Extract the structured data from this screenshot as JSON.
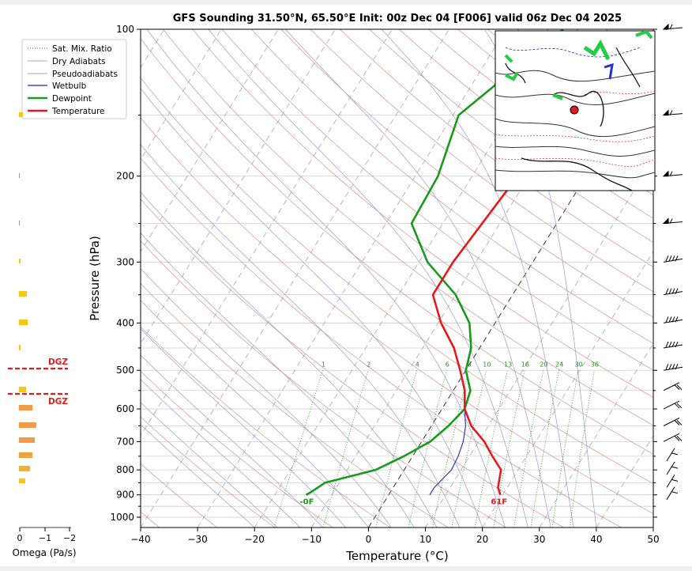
{
  "chart_data": {
    "type": "line",
    "title": "GFS Sounding 31.50°N, 65.50°E Init: 00z Dec 04 [F006] valid 06z Dec 04 2025",
    "xlabel": "Temperature (°C)",
    "ylabel": "Pressure (hPa)",
    "xlim": [
      -40,
      50
    ],
    "ylim": [
      1050,
      100
    ],
    "y_scale": "log",
    "grid": true,
    "legend_position": "top-left",
    "x_ticks": [
      "−40",
      "−30",
      "−20",
      "−10",
      "0",
      "10",
      "20",
      "30",
      "40",
      "50"
    ],
    "y_ticks": [
      "100",
      "200",
      "300",
      "400",
      "500",
      "600",
      "700",
      "800",
      "900",
      "1000"
    ],
    "legend": [
      "Sat. Mix. Ratio",
      "Dry Adiabats",
      "Pseudoadiabats",
      "Wetbulb",
      "Dewpoint",
      "Temperature"
    ],
    "mixing_ratio_labels": [
      "1",
      "2",
      "4",
      "6",
      "8",
      "10",
      "13",
      "16",
      "20",
      "24",
      "30",
      "36"
    ],
    "surface_labels": {
      "temperature": "61F",
      "dewpoint": "-0F"
    },
    "series": [
      {
        "name": "Temperature",
        "color": "#e41a1c",
        "points": [
          [
            19.6,
            900
          ],
          [
            18.4,
            870
          ],
          [
            17,
            800
          ],
          [
            14,
            750
          ],
          [
            11,
            700
          ],
          [
            7,
            650
          ],
          [
            4,
            600
          ],
          [
            2,
            550
          ],
          [
            -1,
            500
          ],
          [
            -4.5,
            450
          ],
          [
            -9.5,
            400
          ],
          [
            -14,
            350
          ],
          [
            -14,
            300
          ],
          [
            -12,
            200
          ],
          [
            -4,
            150
          ],
          [
            0,
            100
          ]
        ]
      },
      {
        "name": "Dewpoint",
        "color": "#1a9a1a",
        "points": [
          [
            -14.5,
            900
          ],
          [
            -14,
            890
          ],
          [
            -12.5,
            850
          ],
          [
            -5,
            800
          ],
          [
            -1.5,
            750
          ],
          [
            1.5,
            700
          ],
          [
            3,
            650
          ],
          [
            4,
            600
          ],
          [
            3,
            550
          ],
          [
            0,
            500
          ],
          [
            -1.5,
            450
          ],
          [
            -4.5,
            400
          ],
          [
            -10,
            350
          ],
          [
            -18.5,
            300
          ],
          [
            -25.5,
            250
          ],
          [
            -26,
            200
          ],
          [
            -29,
            150
          ],
          [
            -20,
            100
          ]
        ]
      },
      {
        "name": "Wetbulb",
        "color": "#2222dd",
        "points": [
          [
            7.2,
            900
          ],
          [
            7.2,
            870
          ],
          [
            7.5,
            850
          ],
          [
            8.3,
            800
          ],
          [
            8,
            750
          ],
          [
            7.3,
            700
          ],
          [
            6,
            650
          ],
          [
            4,
            600
          ],
          [
            2,
            550
          ],
          [
            -1,
            500
          ],
          [
            -4.5,
            450
          ],
          [
            -9.5,
            400
          ],
          [
            -14,
            350
          ],
          [
            -14,
            300
          ],
          [
            -12,
            200
          ],
          [
            -4,
            150
          ],
          [
            0,
            100
          ]
        ]
      }
    ],
    "omega_panel": {
      "xlabel": "Omega (Pa/s)",
      "x_ticks": [
        "0",
        "−1",
        "−2"
      ],
      "dgz_label": "DGZ",
      "dgz_pressures": [
        494,
        562
      ]
    }
  }
}
